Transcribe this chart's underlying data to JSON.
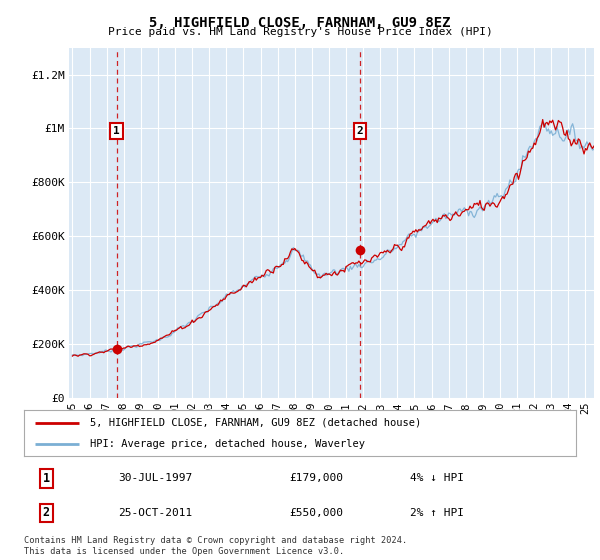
{
  "title": "5, HIGHFIELD CLOSE, FARNHAM, GU9 8EZ",
  "subtitle": "Price paid vs. HM Land Registry's House Price Index (HPI)",
  "legend_line1": "5, HIGHFIELD CLOSE, FARNHAM, GU9 8EZ (detached house)",
  "legend_line2": "HPI: Average price, detached house, Waverley",
  "annotation1_label": "1",
  "annotation1_date": "30-JUL-1997",
  "annotation1_price": "£179,000",
  "annotation1_hpi": "4% ↓ HPI",
  "annotation1_year": 1997.58,
  "annotation1_value": 179000,
  "annotation2_label": "2",
  "annotation2_date": "25-OCT-2011",
  "annotation2_price": "£550,000",
  "annotation2_hpi": "2% ↑ HPI",
  "annotation2_year": 2011.83,
  "annotation2_value": 550000,
  "ylabel_ticks": [
    "£0",
    "£200K",
    "£400K",
    "£600K",
    "£800K",
    "£1M",
    "£1.2M"
  ],
  "ytick_values": [
    0,
    200000,
    400000,
    600000,
    800000,
    1000000,
    1200000
  ],
  "ylim": [
    0,
    1300000
  ],
  "xlim_start": 1994.8,
  "xlim_end": 2025.5,
  "background_color": "#dce9f5",
  "outer_bg_color": "#ffffff",
  "grid_color": "#ffffff",
  "red_line_color": "#cc0000",
  "blue_line_color": "#7bafd4",
  "annotation_box_color": "#cc0000",
  "footnote": "Contains HM Land Registry data © Crown copyright and database right 2024.\nThis data is licensed under the Open Government Licence v3.0.",
  "xtick_labels": [
    "95",
    "96",
    "97",
    "98",
    "99",
    "00",
    "01",
    "02",
    "03",
    "04",
    "05",
    "06",
    "07",
    "08",
    "09",
    "10",
    "11",
    "12",
    "13",
    "14",
    "15",
    "16",
    "17",
    "18",
    "19",
    "20",
    "21",
    "22",
    "23",
    "24",
    "25"
  ],
  "xtick_years": [
    1995,
    1996,
    1997,
    1998,
    1999,
    2000,
    2001,
    2002,
    2003,
    2004,
    2005,
    2006,
    2007,
    2008,
    2009,
    2010,
    2011,
    2012,
    2013,
    2014,
    2015,
    2016,
    2017,
    2018,
    2019,
    2020,
    2021,
    2022,
    2023,
    2024,
    2025
  ]
}
